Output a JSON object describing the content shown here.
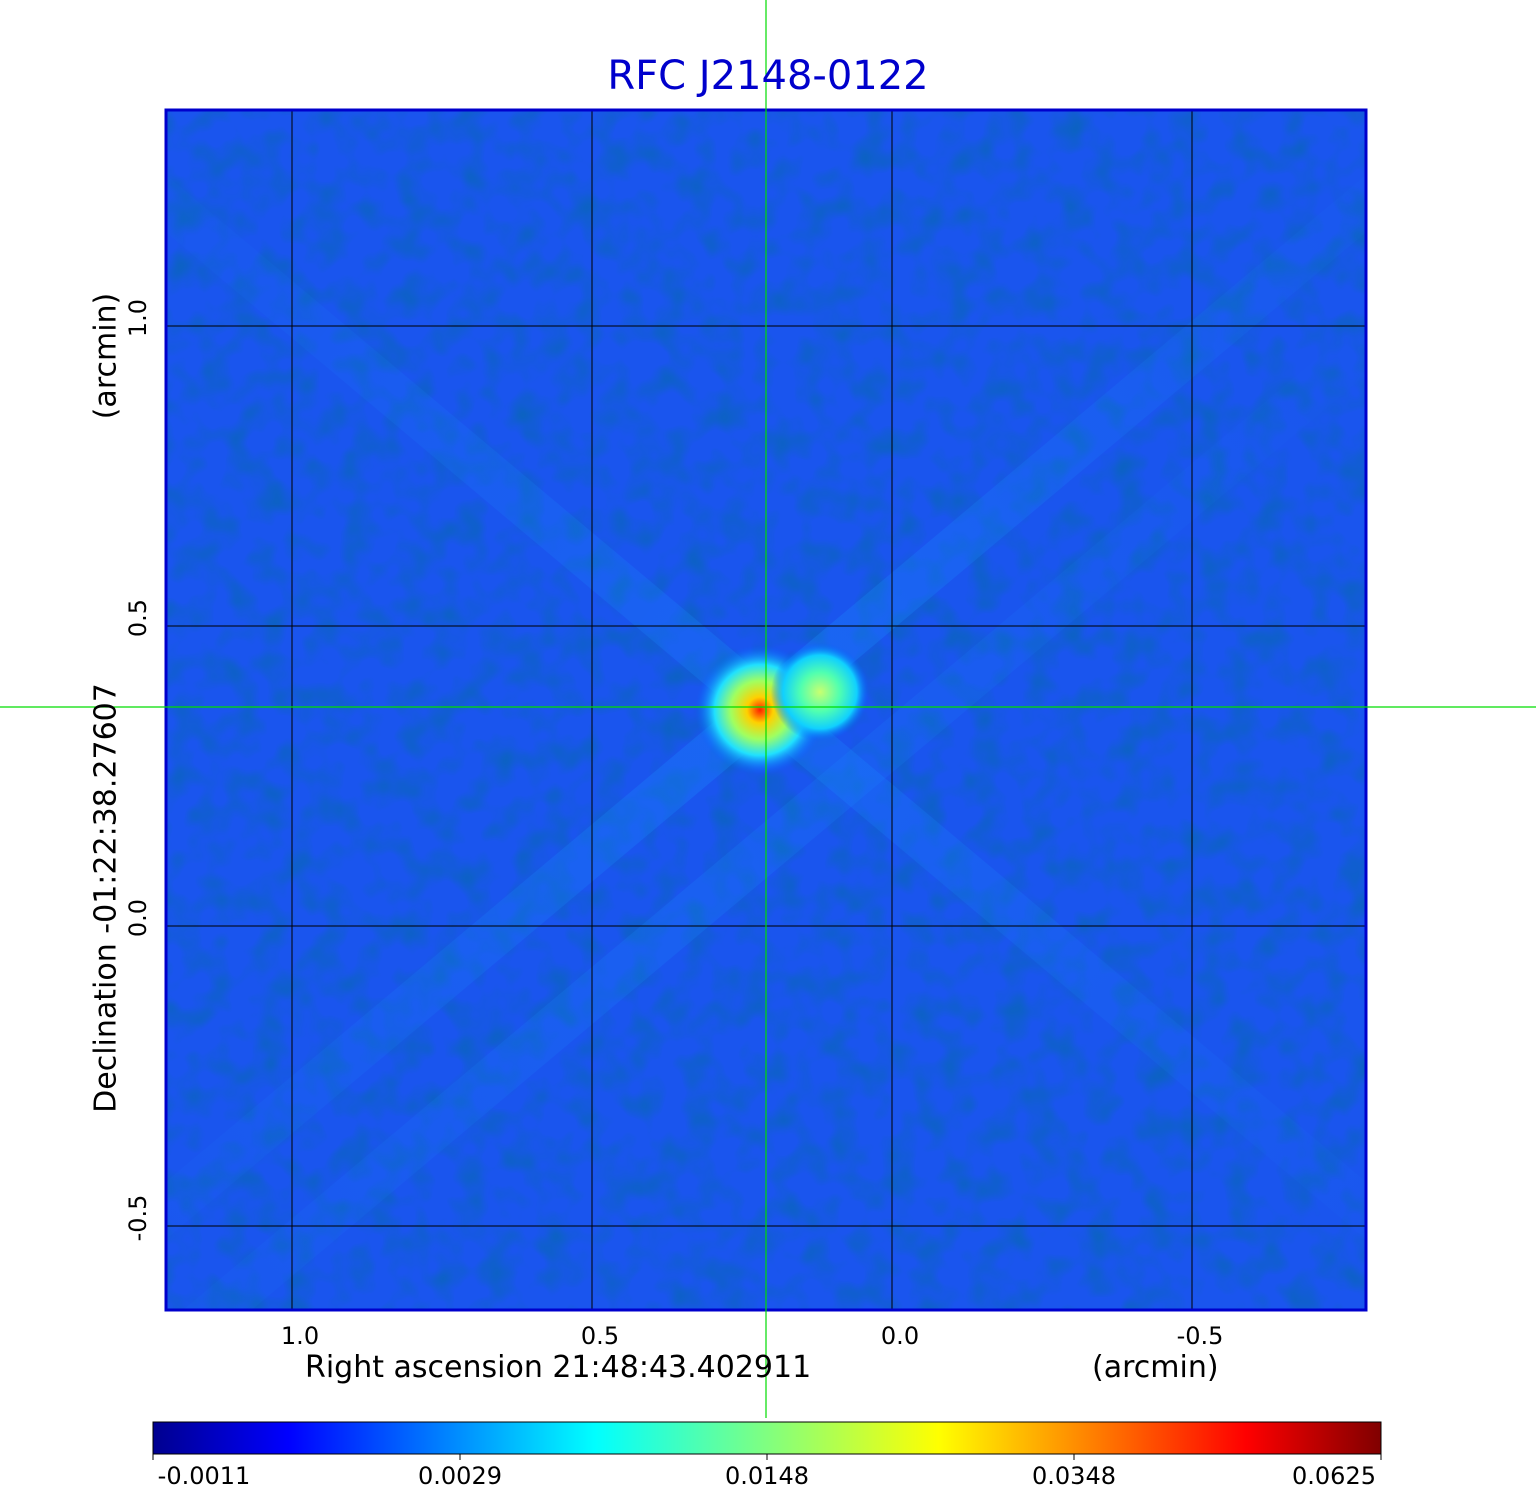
{
  "chart_data": {
    "type": "heatmap",
    "title": "RFC J2148-0122",
    "xlabel": "Right ascension  21:48:43.402911",
    "xlabel_unit": "(arcmin)",
    "ylabel": "Declination  -01:22:38.27607",
    "ylabel_unit": "(arcmin)",
    "xlim": [
      1.21,
      -0.79
    ],
    "ylim": [
      -0.64,
      1.36
    ],
    "x_ticks": [
      {
        "value": 1.0,
        "label": "1.0"
      },
      {
        "value": 0.5,
        "label": "0.5"
      },
      {
        "value": 0.0,
        "label": "0.0"
      },
      {
        "value": -0.5,
        "label": "-0.5"
      }
    ],
    "y_ticks": [
      {
        "value": 1.0,
        "label": "1.0"
      },
      {
        "value": 0.5,
        "label": "0.5"
      },
      {
        "value": 0.0,
        "label": "0.0"
      },
      {
        "value": -0.5,
        "label": "-0.5"
      }
    ],
    "grid": true,
    "crosshair": {
      "x": 0.21,
      "y": 0.365
    },
    "colorbar": {
      "colormap": "jet",
      "tick_labels": [
        "-0.0011",
        "0.0029",
        "0.0148",
        "0.0348",
        "0.0625"
      ]
    },
    "peaks": [
      {
        "x": 0.22,
        "y": 0.36,
        "value": 0.0625
      },
      {
        "x": 0.12,
        "y": 0.39,
        "value": 0.014
      }
    ],
    "colors": {
      "title": "#0000cc",
      "crosshair": "#00dd00",
      "grid": "#000000",
      "frame": "#0000cc"
    }
  }
}
